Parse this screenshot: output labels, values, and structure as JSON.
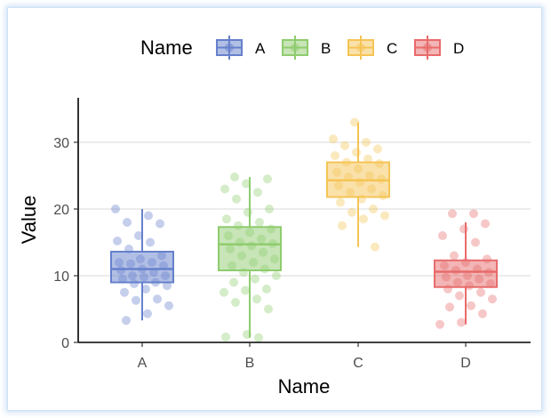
{
  "chart_data": {
    "type": "boxplot",
    "xlabel": "Name",
    "ylabel": "Value",
    "ylim": [
      0,
      36
    ],
    "y_ticks": [
      0,
      10,
      20,
      30
    ],
    "grid": "horizontal",
    "legend": {
      "title": "Name",
      "position": "top",
      "labels": [
        "A",
        "B",
        "C",
        "D"
      ]
    },
    "categories": [
      "A",
      "B",
      "C",
      "D"
    ],
    "colors": [
      "#6680cc",
      "#8fcc6e",
      "#f5c455",
      "#e86b6b"
    ],
    "boxes": [
      {
        "name": "A",
        "whisker_low": 3.3,
        "q1": 9.0,
        "median": 11.0,
        "q3": 13.6,
        "whisker_high": 20.0
      },
      {
        "name": "B",
        "whisker_low": 0.7,
        "q1": 10.8,
        "median": 14.7,
        "q3": 17.3,
        "whisker_high": 24.8
      },
      {
        "name": "C",
        "whisker_low": 14.3,
        "q1": 21.8,
        "median": 24.3,
        "q3": 27.0,
        "whisker_high": 33.0
      },
      {
        "name": "D",
        "whisker_low": 2.7,
        "q1": 8.3,
        "median": 10.6,
        "q3": 12.3,
        "whisker_high": 18.0
      }
    ],
    "points": [
      {
        "name": "A",
        "values": [
          20.0,
          19.0,
          18.0,
          17.8,
          16.0,
          15.2,
          15.0,
          14.0,
          13.0,
          12.5,
          12.0,
          12.0,
          11.8,
          11.5,
          11.0,
          10.8,
          10.5,
          10.0,
          10.0,
          9.8,
          9.5,
          9.0,
          8.8,
          8.5,
          8.0,
          7.5,
          6.5,
          6.3,
          5.5,
          4.3,
          3.3
        ]
      },
      {
        "name": "B",
        "values": [
          24.8,
          24.5,
          23.8,
          23.0,
          22.5,
          21.5,
          20.0,
          19.5,
          18.5,
          18.0,
          17.5,
          17.0,
          16.5,
          16.0,
          15.5,
          15.0,
          14.8,
          14.5,
          14.0,
          13.5,
          13.0,
          12.5,
          12.0,
          11.5,
          11.0,
          10.5,
          10.0,
          9.5,
          9.0,
          8.0,
          7.8,
          7.5,
          6.5,
          6.0,
          5.0,
          1.2,
          0.8,
          0.7
        ]
      },
      {
        "name": "C",
        "values": [
          33.0,
          30.5,
          30.0,
          29.5,
          29.0,
          28.5,
          28.0,
          27.5,
          27.0,
          26.8,
          26.0,
          25.5,
          25.0,
          24.8,
          24.5,
          24.0,
          23.5,
          23.0,
          22.5,
          22.0,
          21.5,
          21.0,
          20.0,
          19.5,
          19.0,
          18.5,
          17.5,
          14.3
        ]
      },
      {
        "name": "D",
        "values": [
          19.3,
          19.3,
          17.8,
          17.0,
          16.0,
          15.0,
          13.0,
          12.5,
          12.0,
          11.5,
          11.0,
          10.8,
          10.5,
          10.0,
          9.8,
          9.5,
          9.0,
          8.8,
          8.5,
          8.0,
          7.5,
          7.0,
          6.5,
          5.5,
          5.3,
          4.3,
          3.0,
          2.7
        ]
      }
    ]
  }
}
